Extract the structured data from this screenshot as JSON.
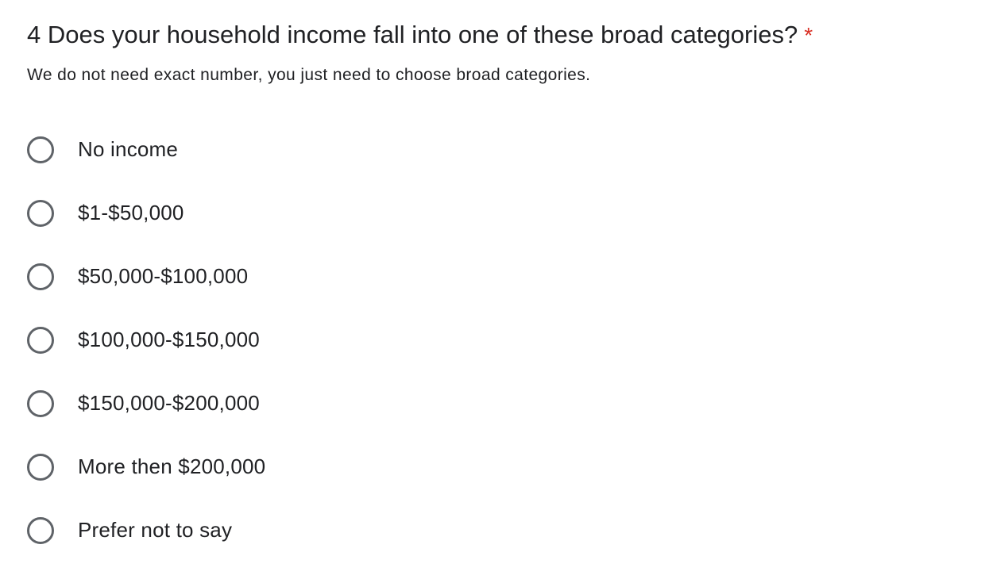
{
  "question": {
    "title": "4 Does your household income fall into one of these broad categories?",
    "required_marker": "*",
    "help_text": "We do not need exact number, you just need to choose broad categories.",
    "required_color": "#d93025"
  },
  "options": [
    {
      "label": "No income",
      "selected": false
    },
    {
      "label": "$1-$50,000",
      "selected": false
    },
    {
      "label": "$50,000-$100,000",
      "selected": false
    },
    {
      "label": "$100,000-$150,000",
      "selected": false
    },
    {
      "label": "$150,000-$200,000",
      "selected": false
    },
    {
      "label": "More then $200,000",
      "selected": false
    },
    {
      "label": "Prefer not to say",
      "selected": false
    }
  ]
}
